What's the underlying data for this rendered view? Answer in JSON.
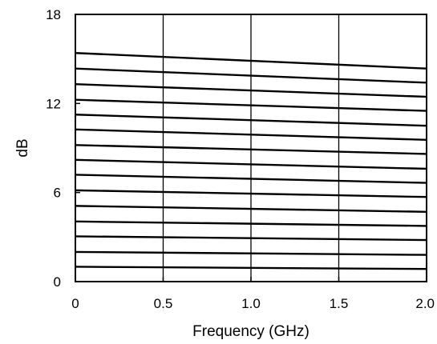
{
  "chart_data": {
    "type": "line",
    "title": "",
    "xlabel": "Frequency (GHz)",
    "ylabel": "dB",
    "xlim": [
      0,
      2.0
    ],
    "ylim": [
      0,
      18
    ],
    "xticks": [
      0,
      0.5,
      1.0,
      1.5,
      2.0
    ],
    "xtick_labels": [
      "0",
      "0.5",
      "1.0",
      "1.5",
      "2.0"
    ],
    "yticks": [
      0,
      6,
      12,
      18
    ],
    "ytick_labels": [
      "0",
      "6",
      "12",
      "18"
    ],
    "grid": {
      "vertical": true,
      "horizontal": false
    },
    "line_color": "#000000",
    "series": [
      {
        "x": [
          0,
          2.0
        ],
        "y": [
          1.0,
          0.85
        ]
      },
      {
        "x": [
          0,
          2.0
        ],
        "y": [
          2.0,
          1.8
        ]
      },
      {
        "x": [
          0,
          2.0
        ],
        "y": [
          3.05,
          2.8
        ]
      },
      {
        "x": [
          0,
          2.0
        ],
        "y": [
          4.05,
          3.75
        ]
      },
      {
        "x": [
          0,
          2.0
        ],
        "y": [
          5.1,
          4.7
        ]
      },
      {
        "x": [
          0,
          2.0
        ],
        "y": [
          6.15,
          5.7
        ]
      },
      {
        "x": [
          0,
          2.0
        ],
        "y": [
          7.2,
          6.65
        ]
      },
      {
        "x": [
          0,
          2.0
        ],
        "y": [
          8.2,
          7.6
        ]
      },
      {
        "x": [
          0,
          2.0
        ],
        "y": [
          9.2,
          8.6
        ]
      },
      {
        "x": [
          0,
          2.0
        ],
        "y": [
          10.25,
          9.55
        ]
      },
      {
        "x": [
          0,
          2.0
        ],
        "y": [
          11.25,
          10.5
        ]
      },
      {
        "x": [
          0,
          2.0
        ],
        "y": [
          12.25,
          11.5
        ]
      },
      {
        "x": [
          0,
          2.0
        ],
        "y": [
          13.3,
          12.45
        ]
      },
      {
        "x": [
          0,
          2.0
        ],
        "y": [
          14.35,
          13.4
        ]
      },
      {
        "x": [
          0,
          2.0
        ],
        "y": [
          15.4,
          14.35
        ]
      }
    ]
  }
}
